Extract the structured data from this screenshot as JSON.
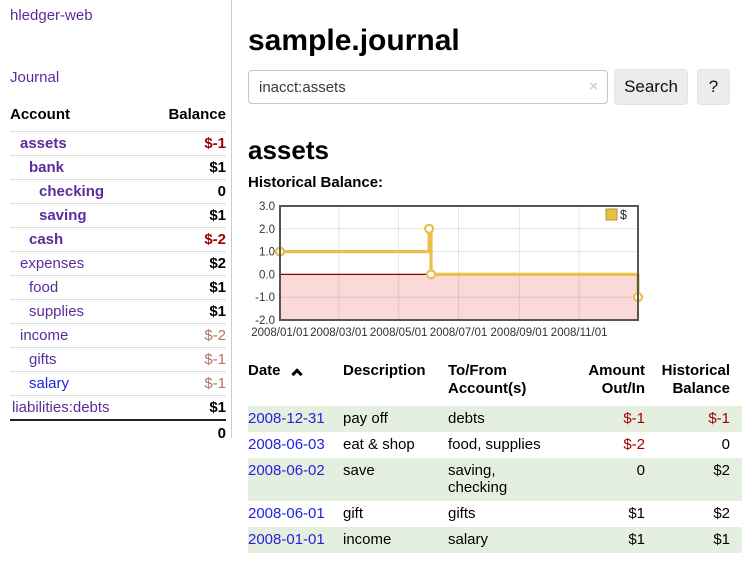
{
  "app": {
    "brand": "hledger-web",
    "nav_journal": "Journal"
  },
  "sidebar": {
    "header": {
      "account": "Account",
      "balance": "Balance"
    },
    "accounts": [
      {
        "name": "assets",
        "depth": 1,
        "bold": true,
        "blue": false,
        "balance": "$-1",
        "balance_class": "neg-strong"
      },
      {
        "name": "bank",
        "depth": 2,
        "bold": true,
        "blue": false,
        "balance": "$1",
        "balance_class": "pos"
      },
      {
        "name": "checking",
        "depth": 3,
        "bold": true,
        "blue": false,
        "balance": "0",
        "balance_class": "pos"
      },
      {
        "name": "saving",
        "depth": 3,
        "bold": true,
        "blue": false,
        "balance": "$1",
        "balance_class": "pos"
      },
      {
        "name": "cash",
        "depth": 2,
        "bold": true,
        "blue": false,
        "balance": "$-2",
        "balance_class": "neg-strong"
      },
      {
        "name": "expenses",
        "depth": 1,
        "bold": false,
        "blue": false,
        "balance": "$2",
        "balance_class": "pos"
      },
      {
        "name": "food",
        "depth": 2,
        "bold": false,
        "blue": false,
        "balance": "$1",
        "balance_class": "pos"
      },
      {
        "name": "supplies",
        "depth": 2,
        "bold": false,
        "blue": false,
        "balance": "$1",
        "balance_class": "pos"
      },
      {
        "name": "income",
        "depth": 1,
        "bold": false,
        "blue": false,
        "balance": "$-2",
        "balance_class": "neg-soft"
      },
      {
        "name": "gifts",
        "depth": 2,
        "bold": false,
        "blue": false,
        "balance": "$-1",
        "balance_class": "neg-soft"
      },
      {
        "name": "salary",
        "depth": 2,
        "bold": false,
        "blue": true,
        "balance": "$-1",
        "balance_class": "neg-soft"
      },
      {
        "name": "liabilities:debts",
        "depth": 0,
        "bold": false,
        "blue": false,
        "balance": "$1",
        "balance_class": "pos"
      }
    ],
    "total": "0"
  },
  "main": {
    "title": "sample.journal",
    "search": {
      "value": "inacct:assets",
      "clear_icon": "×",
      "button": "Search",
      "help": "?"
    },
    "heading": "assets",
    "chart_label": "Historical Balance:"
  },
  "chart_data": {
    "type": "line",
    "subtype": "step-after",
    "title": "Historical Balance:",
    "series": [
      {
        "name": "$",
        "points": [
          [
            "2008-01-01",
            1
          ],
          [
            "2008-06-01",
            2
          ],
          [
            "2008-06-03",
            0
          ],
          [
            "2008-12-31",
            -1
          ]
        ]
      }
    ],
    "x_range": [
      "2008-01-01",
      "2008-12-31"
    ],
    "ylim": [
      -2,
      3
    ],
    "y_ticks": [
      {
        "value": 3,
        "label": "3.0"
      },
      {
        "value": 2,
        "label": "2.0"
      },
      {
        "value": 1,
        "label": "1.0"
      },
      {
        "value": 0,
        "label": "0.0"
      },
      {
        "value": -1,
        "label": "-1.0"
      },
      {
        "value": -2,
        "label": "-2.0"
      }
    ],
    "x_ticks": [
      {
        "date": "2008-01-01",
        "label": "2008/01/01"
      },
      {
        "date": "2008-03-01",
        "label": "2008/03/01"
      },
      {
        "date": "2008-05-01",
        "label": "2008/05/01"
      },
      {
        "date": "2008-07-01",
        "label": "2008/07/01"
      },
      {
        "date": "2008-09-01",
        "label": "2008/09/01"
      },
      {
        "date": "2008-11-01",
        "label": "2008/11/01"
      }
    ],
    "legend": {
      "label": "$",
      "position": "top-right"
    },
    "grid": true,
    "colors": {
      "line": "#e8c04a",
      "marker_fill": "#ffffff",
      "negative_fill": "#fbd9d9",
      "zero_line": "#8b0000",
      "grid": "rgba(0,0,0,0.10)",
      "border": "#555555",
      "legend_square": "#e8c040"
    }
  },
  "table": {
    "headers": {
      "date": "Date",
      "description": "Description",
      "accounts": "To/From Account(s)",
      "amount": "Amount Out/In",
      "balance": "Historical Balance"
    },
    "rows": [
      {
        "date": "2008-12-31",
        "description": "pay off",
        "accounts": "debts",
        "amount": "$-1",
        "amount_class": "neg",
        "balance": "$-1",
        "balance_class": "neg"
      },
      {
        "date": "2008-06-03",
        "description": "eat & shop",
        "accounts": "food, supplies",
        "amount": "$-2",
        "amount_class": "neg",
        "balance": "0",
        "balance_class": "pos"
      },
      {
        "date": "2008-06-02",
        "description": "save",
        "accounts": "saving,\nchecking",
        "amount": "0",
        "amount_class": "pos",
        "balance": "$2",
        "balance_class": "pos"
      },
      {
        "date": "2008-06-01",
        "description": "gift",
        "accounts": "gifts",
        "amount": "$1",
        "amount_class": "pos",
        "balance": "$2",
        "balance_class": "pos"
      },
      {
        "date": "2008-01-01",
        "description": "income",
        "accounts": "salary",
        "amount": "$1",
        "amount_class": "pos",
        "balance": "$1",
        "balance_class": "pos"
      }
    ]
  }
}
